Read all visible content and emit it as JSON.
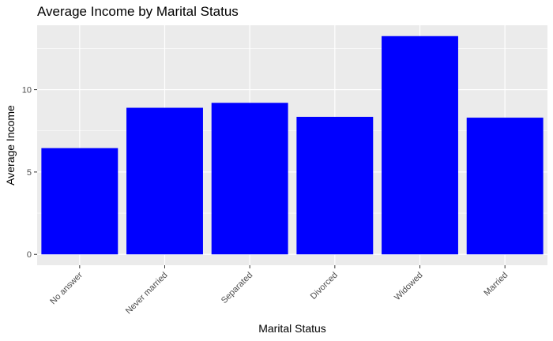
{
  "chart_data": {
    "type": "bar",
    "title": "Average Income by Marital Status",
    "xlabel": "Marital Status",
    "ylabel": "Average Income",
    "categories": [
      "No answer",
      "Never married",
      "Separated",
      "Divorced",
      "Widowed",
      "Married"
    ],
    "values": [
      6.45,
      8.9,
      9.2,
      8.35,
      13.25,
      8.3
    ],
    "ylim": [
      -0.66,
      13.91
    ],
    "yticks": [
      0,
      5,
      10
    ],
    "ytick_labels": [
      "0",
      "5",
      "10"
    ],
    "grid": true,
    "legend": "none",
    "colors": {
      "bar": "#0000ff",
      "panel": "#ebebeb",
      "grid": "#ffffff"
    }
  }
}
